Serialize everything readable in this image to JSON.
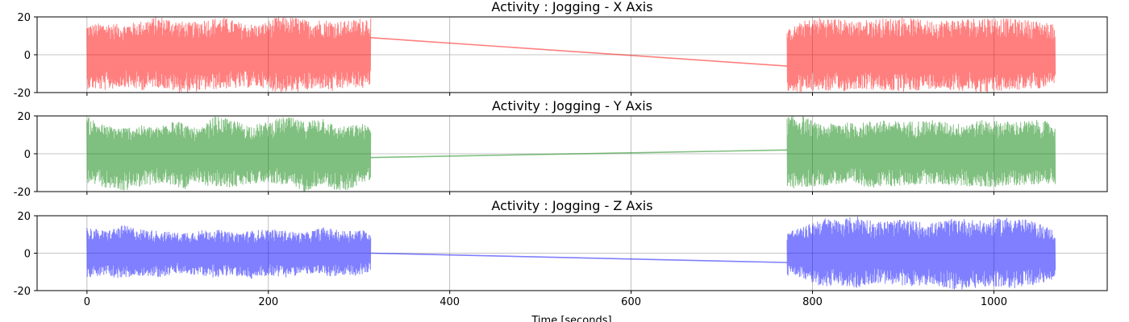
{
  "figure": {
    "xlabel": "Time [seconds]"
  },
  "chart_data": [
    {
      "type": "line",
      "title": "Activity : Jogging - X Axis",
      "xlabel": "",
      "ylabel": "",
      "xlim": [
        -55,
        1125
      ],
      "ylim": [
        -20,
        20
      ],
      "xticks": [
        0,
        200,
        400,
        600,
        800,
        1000
      ],
      "yticks": [
        -20,
        0,
        20
      ],
      "grid": true,
      "color": "#ff0000",
      "alpha": 0.5,
      "series": [
        {
          "x": [
            0,
            20,
            40,
            60,
            75,
            85,
            100,
            115,
            130,
            150,
            170,
            190,
            210,
            230,
            245,
            260,
            270,
            290,
            305,
            313,
            772,
            790,
            810,
            830,
            850,
            870,
            900,
            930,
            960,
            990,
            1020,
            1050,
            1068
          ],
          "y_max": [
            16,
            17,
            16,
            18,
            20,
            20,
            18,
            17,
            19,
            20,
            17,
            16,
            20,
            20,
            18,
            19,
            18,
            18,
            20,
            20,
            13,
            18,
            20,
            19,
            18,
            19,
            20,
            18,
            19,
            20,
            19,
            18,
            16
          ],
          "y_min": [
            -18,
            -19,
            -17,
            -19,
            -17,
            -18,
            -20,
            -20,
            -19,
            -18,
            -18,
            -17,
            -20,
            -20,
            -19,
            -18,
            -20,
            -17,
            -18,
            -16,
            -19,
            -20,
            -19,
            -20,
            -18,
            -19,
            -20,
            -18,
            -19,
            -20,
            -19,
            -18,
            -15
          ],
          "connector": [
            [
              313,
              9
            ],
            [
              772,
              -6
            ]
          ]
        }
      ]
    },
    {
      "type": "line",
      "title": "Activity : Jogging - Y Axis",
      "xlabel": "",
      "ylabel": "",
      "xlim": [
        -55,
        1125
      ],
      "ylim": [
        -20,
        20
      ],
      "xticks": [
        0,
        200,
        400,
        600,
        800,
        1000
      ],
      "yticks": [
        -20,
        0,
        20
      ],
      "grid": true,
      "color": "#008000",
      "alpha": 0.5,
      "series": [
        {
          "x": [
            0,
            20,
            40,
            60,
            80,
            95,
            110,
            125,
            140,
            160,
            180,
            200,
            220,
            240,
            260,
            275,
            290,
            305,
            313,
            772,
            790,
            810,
            830,
            850,
            870,
            900,
            930,
            960,
            990,
            1020,
            1050,
            1068
          ],
          "y_max": [
            20,
            15,
            14,
            15,
            14,
            20,
            15,
            13,
            20,
            18,
            15,
            17,
            20,
            17,
            20,
            14,
            15,
            16,
            14,
            20,
            20,
            15,
            17,
            16,
            18,
            17,
            18,
            16,
            18,
            17,
            18,
            16
          ],
          "y_min": [
            -16,
            -18,
            -20,
            -17,
            -16,
            -17,
            -19,
            -16,
            -18,
            -18,
            -16,
            -15,
            -17,
            -20,
            -16,
            -20,
            -19,
            -15,
            -14,
            -19,
            -18,
            -17,
            -16,
            -17,
            -18,
            -17,
            -16,
            -17,
            -18,
            -17,
            -16,
            -16
          ],
          "connector": [
            [
              313,
              -2
            ],
            [
              772,
              2
            ]
          ]
        }
      ]
    },
    {
      "type": "line",
      "title": "Activity : Jogging - Z Axis",
      "xlabel": "Time [seconds]",
      "ylabel": "",
      "xlim": [
        -55,
        1125
      ],
      "ylim": [
        -20,
        20
      ],
      "xticks": [
        0,
        200,
        400,
        600,
        800,
        1000
      ],
      "yticks": [
        -20,
        0,
        20
      ],
      "grid": true,
      "color": "#0000ff",
      "alpha": 0.5,
      "series": [
        {
          "x": [
            0,
            20,
            40,
            60,
            80,
            100,
            120,
            140,
            160,
            180,
            200,
            220,
            240,
            260,
            280,
            300,
            313,
            772,
            790,
            810,
            830,
            850,
            870,
            900,
            930,
            960,
            990,
            1020,
            1050,
            1068
          ],
          "y_max": [
            14,
            12,
            15,
            13,
            12,
            11,
            12,
            13,
            11,
            12,
            13,
            12,
            11,
            14,
            12,
            13,
            11,
            12,
            14,
            19,
            18,
            20,
            17,
            18,
            16,
            19,
            17,
            20,
            16,
            12
          ],
          "y_min": [
            -13,
            -12,
            -14,
            -12,
            -13,
            -11,
            -12,
            -13,
            -12,
            -14,
            -12,
            -13,
            -11,
            -12,
            -13,
            -12,
            -10,
            -12,
            -14,
            -18,
            -17,
            -19,
            -16,
            -18,
            -17,
            -20,
            -18,
            -19,
            -17,
            -14
          ],
          "connector": [
            [
              313,
              0
            ],
            [
              772,
              -5
            ]
          ]
        }
      ]
    }
  ]
}
